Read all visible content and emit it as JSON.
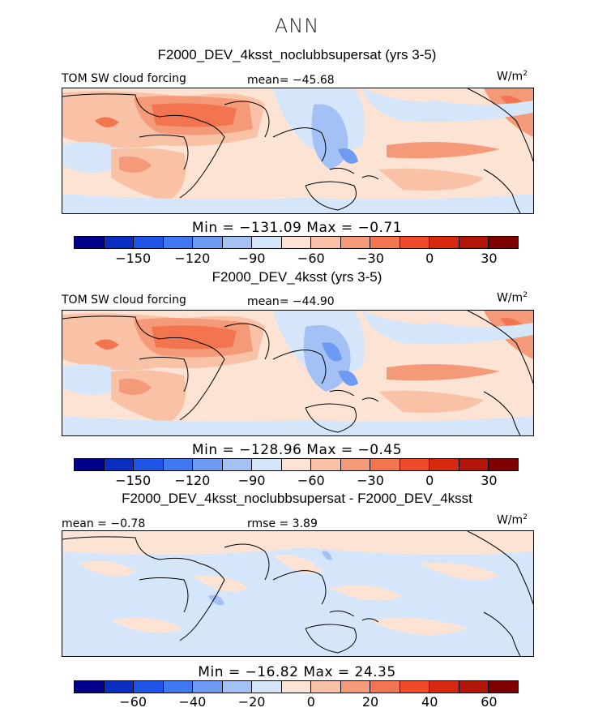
{
  "season": "ANN",
  "colors": {
    "sw_scale": [
      "#00008b",
      "#0a2fc0",
      "#1f55e6",
      "#3f78f0",
      "#6d9bf3",
      "#a3c1f5",
      "#d6e6fa",
      "#fde3d3",
      "#f9c2a6",
      "#f59a78",
      "#f27550",
      "#ef4a2a",
      "#d92810",
      "#b31608",
      "#800000"
    ],
    "diff_scale": [
      "#00008b",
      "#0a2fc0",
      "#1f55e6",
      "#3f78f0",
      "#6d9bf3",
      "#a3c1f5",
      "#d6e6fa",
      "#fde3d3",
      "#f9c2a6",
      "#f59a78",
      "#f27550",
      "#ef4a2a",
      "#d92810",
      "#b31608",
      "#800000"
    ]
  },
  "panels": [
    {
      "title": "F2000_DEV_4ksst_noclubbsupersat (yrs 3-5)",
      "left_label": "TOM SW cloud forcing",
      "mean_label": "mean= −45.68",
      "units": "W/m",
      "units_sup": "2",
      "minmax": "Min = −131.09 Max = −0.71",
      "ticks": [
        "−150",
        "−120",
        "−90",
        "−60",
        "−30",
        "0",
        "30"
      ]
    },
    {
      "title": "F2000_DEV_4ksst (yrs 3-5)",
      "left_label": "TOM SW cloud forcing",
      "mean_label": "mean= −44.90",
      "units": "W/m",
      "units_sup": "2",
      "minmax": "Min = −128.96 Max = −0.45",
      "ticks": [
        "−150",
        "−120",
        "−90",
        "−60",
        "−30",
        "0",
        "30"
      ]
    },
    {
      "title": "F2000_DEV_4ksst_noclubbsupersat - F2000_DEV_4ksst",
      "left_label": "mean = −0.78",
      "mean_label": "rmse = 3.89",
      "units": "W/m",
      "units_sup": "2",
      "minmax": "Min = −16.82 Max = 24.35",
      "ticks": [
        "−60",
        "−40",
        "−20",
        "0",
        "20",
        "40",
        "60"
      ]
    }
  ]
}
